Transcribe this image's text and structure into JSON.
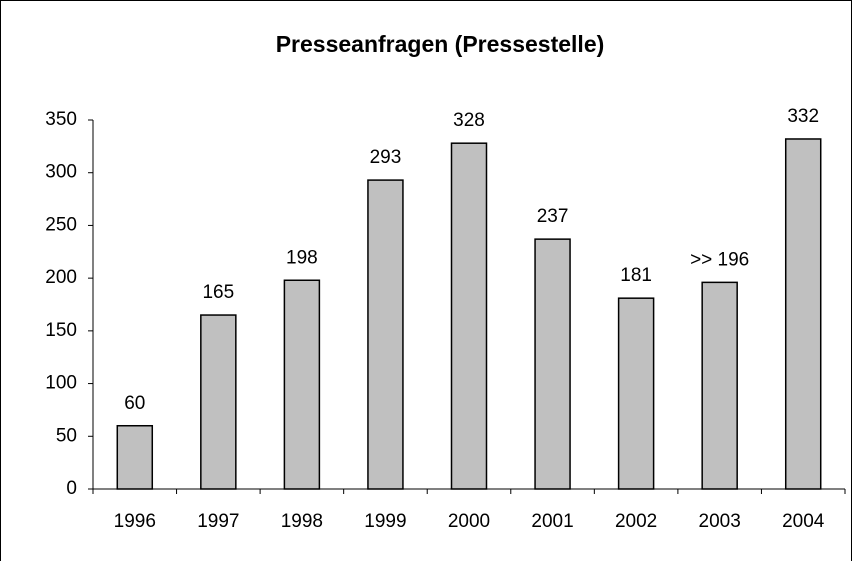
{
  "chart_data": {
    "type": "bar",
    "title": "Presseanfragen (Pressestelle)",
    "categories": [
      "1996",
      "1997",
      "1998",
      "1999",
      "2000",
      "2001",
      "2002",
      "2003",
      "2004"
    ],
    "values": [
      60,
      165,
      198,
      293,
      328,
      237,
      181,
      196,
      332
    ],
    "value_labels": [
      "60",
      "165",
      "198",
      "293",
      "328",
      "237",
      "181",
      ">> 196",
      "332"
    ],
    "color": "#c0c0c0",
    "ylim": [
      0,
      350
    ],
    "yticks": [
      0,
      50,
      100,
      150,
      200,
      250,
      300,
      350
    ],
    "grid": false
  }
}
